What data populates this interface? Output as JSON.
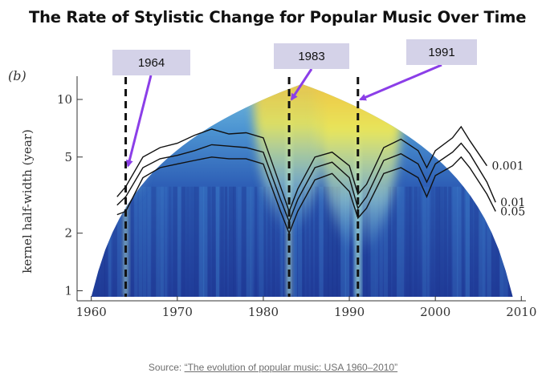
{
  "title": "The Rate of Stylistic Change for Popular Music Over Time",
  "source": {
    "prefix": "Source:",
    "link_text": "“The evolution of popular music: USA 1960–2010”"
  },
  "chart_data": {
    "type": "heatmap",
    "panel_label": "(b)",
    "xlabel": "",
    "ylabel": "kernel half-width (year)",
    "x_ticks": [
      1960,
      1970,
      1980,
      1990,
      2000,
      2010
    ],
    "y_ticks": [
      1,
      2,
      5,
      10
    ],
    "y_scale": "log",
    "xlim": [
      1959,
      2011
    ],
    "ylim": [
      0.93,
      13.1
    ],
    "colormap": [
      "#1a2f8a",
      "#2b56b0",
      "#3f83cc",
      "#73bde0",
      "#a8dcd0",
      "#e8e55a",
      "#f2b53a",
      "#e4662a",
      "#b0220f"
    ],
    "peaks": [
      {
        "year": 1964,
        "intensity": 0.5
      },
      {
        "year": 1983,
        "intensity": 0.8
      },
      {
        "year": 1991,
        "intensity": 1.0
      }
    ],
    "highlighted_years": [
      1964,
      1983,
      1991
    ],
    "callouts": [
      {
        "label": "1964",
        "target": [
          1964,
          4.5
        ]
      },
      {
        "label": "1983",
        "target": [
          1983,
          10.8
        ]
      },
      {
        "label": "1991",
        "target": [
          1991,
          10.8
        ]
      }
    ],
    "significance_contours": [
      {
        "label": "0.001",
        "x": [
          1963,
          1964,
          1966,
          1968,
          1970,
          1972,
          1974,
          1976,
          1978,
          1980,
          1982,
          1983,
          1984,
          1986,
          1988,
          1990,
          1991,
          1992,
          1994,
          1996,
          1998,
          1999,
          2000,
          2002,
          2003,
          2004,
          2006
        ],
        "y": [
          3.1,
          3.5,
          5.0,
          5.6,
          5.9,
          6.5,
          7.0,
          6.6,
          6.7,
          6.3,
          3.5,
          2.6,
          3.4,
          5.0,
          5.3,
          4.5,
          3.2,
          3.6,
          5.6,
          6.2,
          5.4,
          4.4,
          5.4,
          6.3,
          7.2,
          6.1,
          4.5
        ]
      },
      {
        "label": "0.01",
        "x": [
          1963,
          1964,
          1966,
          1968,
          1970,
          1972,
          1974,
          1976,
          1978,
          1980,
          1982,
          1983,
          1984,
          1986,
          1988,
          1990,
          1991,
          1992,
          1994,
          1996,
          1998,
          1999,
          2000,
          2002,
          2003,
          2004,
          2006,
          2007
        ],
        "y": [
          2.8,
          3.1,
          4.4,
          4.9,
          5.1,
          5.4,
          5.8,
          5.7,
          5.6,
          5.3,
          3.0,
          2.3,
          3.0,
          4.4,
          4.7,
          3.9,
          2.7,
          3.1,
          4.8,
          5.2,
          4.6,
          3.7,
          4.6,
          5.3,
          5.9,
          5.2,
          3.7,
          2.9
        ]
      },
      {
        "label": "0.05",
        "x": [
          1963,
          1964,
          1966,
          1968,
          1970,
          1972,
          1974,
          1976,
          1978,
          1980,
          1982,
          1983,
          1984,
          1986,
          1988,
          1990,
          1991,
          1992,
          1994,
          1996,
          1998,
          1999,
          2000,
          2002,
          2003,
          2004,
          2006,
          2007
        ],
        "y": [
          2.5,
          2.6,
          3.9,
          4.4,
          4.6,
          4.8,
          5.0,
          4.9,
          4.9,
          4.6,
          2.6,
          2.0,
          2.6,
          3.8,
          4.1,
          3.3,
          2.4,
          2.7,
          4.1,
          4.4,
          3.9,
          3.1,
          4.0,
          4.5,
          5.0,
          4.4,
          3.2,
          2.6
        ]
      }
    ]
  }
}
